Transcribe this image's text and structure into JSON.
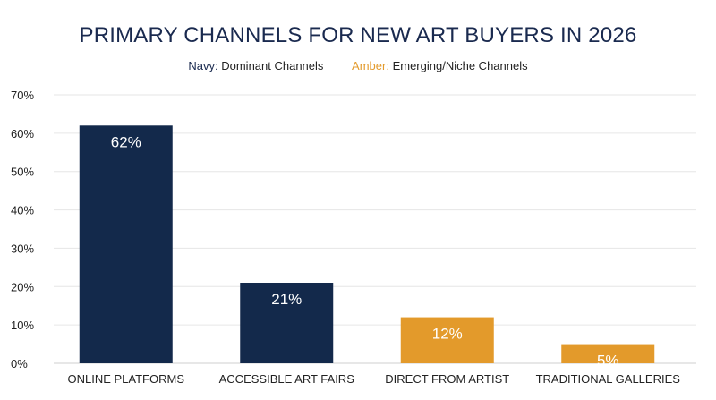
{
  "chart_data": {
    "type": "bar",
    "title": "PRIMARY CHANNELS FOR NEW ART BUYERS IN 2026",
    "legend": [
      {
        "key": "Navy:",
        "text": "Dominant Channels",
        "color": "#1a2a4f"
      },
      {
        "key": "Amber:",
        "text": "Emerging/Niche Channels",
        "color": "#e39a2b"
      }
    ],
    "legend_placement": "top-center",
    "categories": [
      "ONLINE PLATFORMS",
      "ACCESSIBLE ART FAIRS",
      "DIRECT FROM ARTIST",
      "TRADITIONAL GALLERIES"
    ],
    "values": [
      62,
      21,
      12,
      5
    ],
    "value_labels": [
      "62%",
      "21%",
      "12%",
      "5%"
    ],
    "bar_colors": [
      "#13294b",
      "#13294b",
      "#e39a2b",
      "#e39a2b"
    ],
    "ylim": [
      0,
      70
    ],
    "yticks": [
      0,
      10,
      20,
      30,
      40,
      50,
      60,
      70
    ],
    "ytick_labels": [
      "0%",
      "10%",
      "20%",
      "30%",
      "40%",
      "50%",
      "60%",
      "70%"
    ],
    "grid": true,
    "xlabel": "",
    "ylabel": ""
  }
}
